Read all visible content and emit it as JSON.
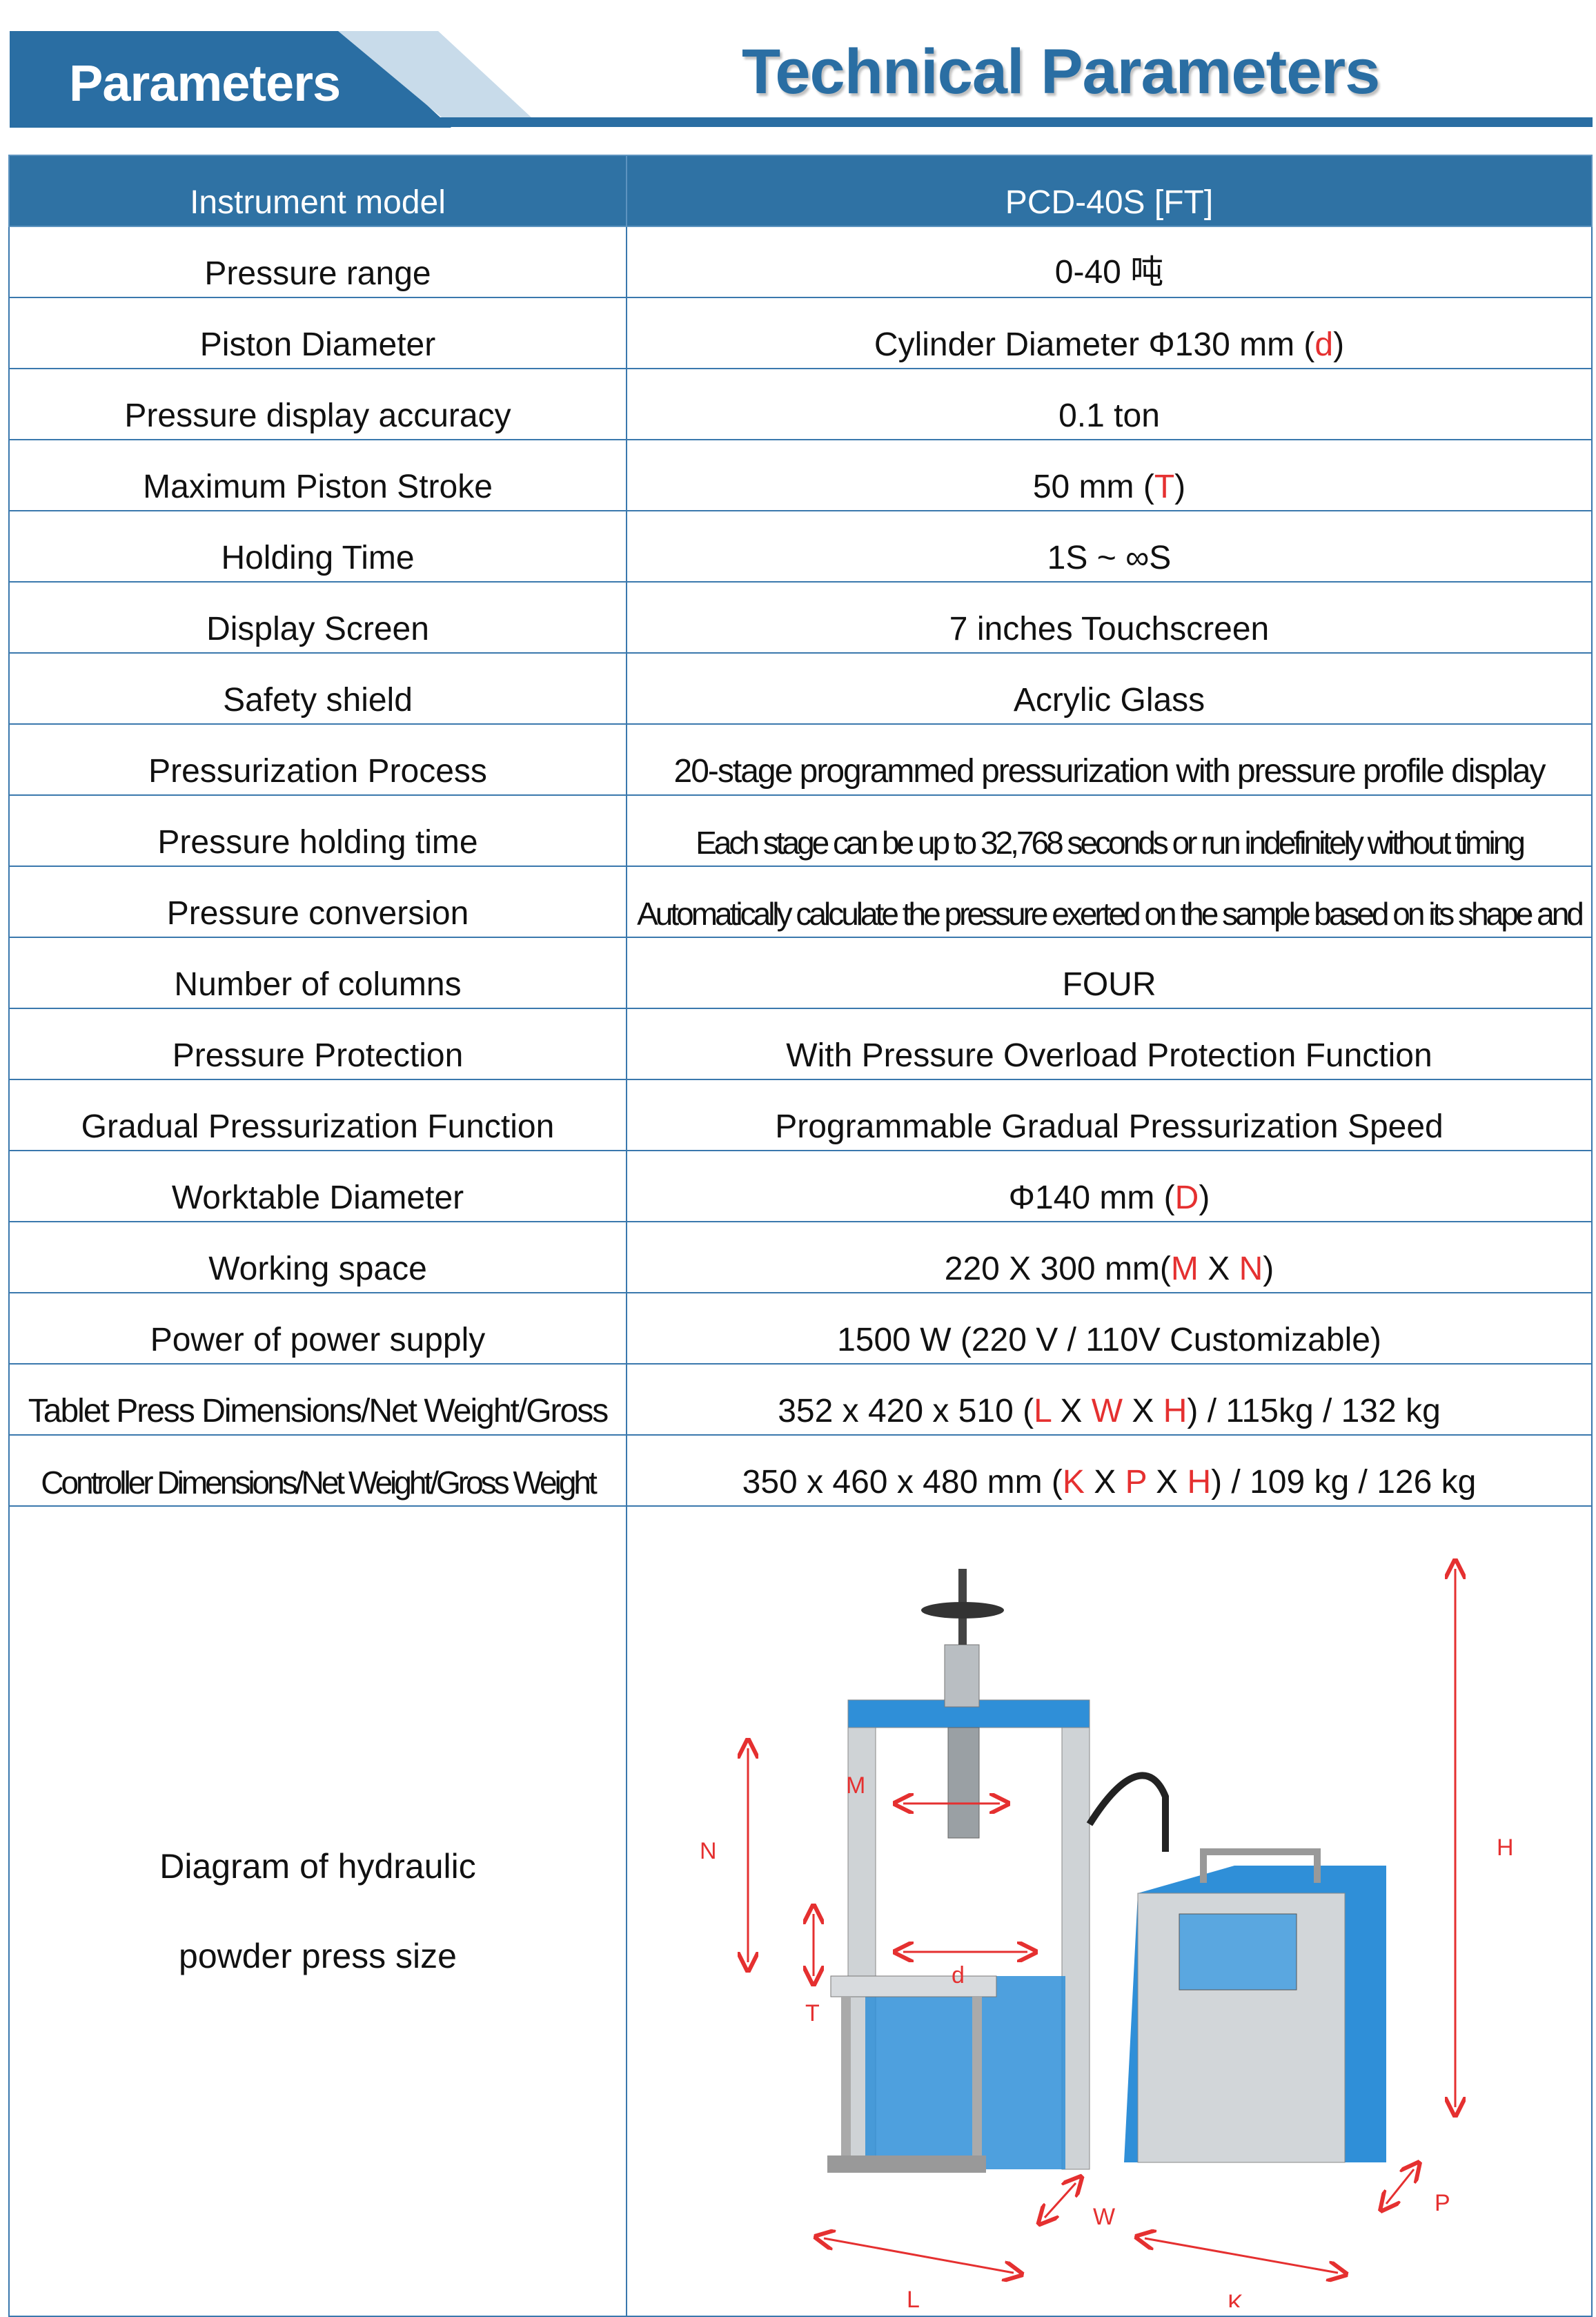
{
  "header": {
    "tag": "Parameters",
    "title": "Technical Parameters"
  },
  "table": {
    "head": {
      "label": "Instrument model",
      "value": [
        {
          "t": "PCD-40S [FT]"
        }
      ]
    },
    "rows": [
      {
        "label": "Pressure range",
        "value": [
          {
            "t": "0-40 吨"
          }
        ]
      },
      {
        "label": "Piston Diameter",
        "value": [
          {
            "t": "Cylinder Diameter  Φ130 mm ("
          },
          {
            "t": "d",
            "red": true
          },
          {
            "t": ")"
          }
        ]
      },
      {
        "label": "Pressure display accuracy",
        "value": [
          {
            "t": "0.1 ton"
          }
        ]
      },
      {
        "label": "Maximum Piston Stroke",
        "value": [
          {
            "t": "50 mm ("
          },
          {
            "t": "T",
            "red": true
          },
          {
            "t": ")"
          }
        ]
      },
      {
        "label": "Holding Time",
        "value": [
          {
            "t": "1S ~  ∞S"
          }
        ]
      },
      {
        "label": "Display Screen",
        "value": [
          {
            "t": "7 inches Touchscreen"
          }
        ]
      },
      {
        "label": "Safety shield",
        "value": [
          {
            "t": "Acrylic Glass"
          }
        ]
      },
      {
        "label": "Pressurization Process",
        "value": [
          {
            "t": "20-stage programmed pressurization with pressure profile display"
          }
        ],
        "style": "narrow"
      },
      {
        "label": "Pressure holding time",
        "value": [
          {
            "t": "Each stage can be up to 32,768 seconds or run indefinitely without timing"
          }
        ],
        "style": "xnarrow"
      },
      {
        "label": "Pressure conversion",
        "value": [
          {
            "t": "Automatically calculate the pressure exerted on the sample based on its shape and"
          }
        ],
        "style": "xnarrow"
      },
      {
        "label": "Number of columns",
        "value": [
          {
            "t": "FOUR"
          }
        ]
      },
      {
        "label": "Pressure Protection",
        "value": [
          {
            "t": "With Pressure Overload Protection Function"
          }
        ]
      },
      {
        "label": "Gradual Pressurization Function",
        "value": [
          {
            "t": "Programmable Gradual Pressurization Speed"
          }
        ]
      },
      {
        "label": "Worktable Diameter",
        "value": [
          {
            "t": "Φ140 mm ("
          },
          {
            "t": "D",
            "red": true
          },
          {
            "t": ")"
          }
        ]
      },
      {
        "label": "Working space",
        "value": [
          {
            "t": "220 X 300 mm("
          },
          {
            "t": "M",
            "red": true
          },
          {
            "t": " X "
          },
          {
            "t": "N",
            "red": true
          },
          {
            "t": ")"
          }
        ]
      },
      {
        "label": "Power of power supply",
        "value": [
          {
            "t": "1500 W (220 V / 110V Customizable)"
          }
        ]
      },
      {
        "label": "Tablet Press Dimensions/Net Weight/Gross",
        "value": [
          {
            "t": "352 x 420 x 510 ("
          },
          {
            "t": "L",
            "red": true
          },
          {
            "t": " X "
          },
          {
            "t": "W",
            "red": true
          },
          {
            "t": " X "
          },
          {
            "t": "H",
            "red": true
          },
          {
            "t": ") / 115kg / 132 kg"
          }
        ],
        "labelStyle": "narrow"
      },
      {
        "label": "Controller Dimensions/Net Weight/Gross Weight",
        "value": [
          {
            "t": "350 x 460 x 480 mm ("
          },
          {
            "t": "K",
            "red": true
          },
          {
            "t": " X "
          },
          {
            "t": "P",
            "red": true
          },
          {
            "t": " X "
          },
          {
            "t": "H",
            "red": true
          },
          {
            "t": ") / 109 kg / 126 kg"
          }
        ],
        "labelStyle": "xnarrow"
      }
    ],
    "diagram": {
      "label_line1": "Diagram of hydraulic",
      "label_line2": "powder press size",
      "dims": {
        "M": "M",
        "N": "N",
        "T": "T",
        "d": "d",
        "W": "W",
        "L": "L",
        "K": "K",
        "P": "P",
        "H": "H"
      }
    }
  },
  "colors": {
    "brand": "#2a6ea3",
    "accent_light": "#c8dbea",
    "dimension_red": "#e53030",
    "device_blue": "#2f8fd8"
  }
}
